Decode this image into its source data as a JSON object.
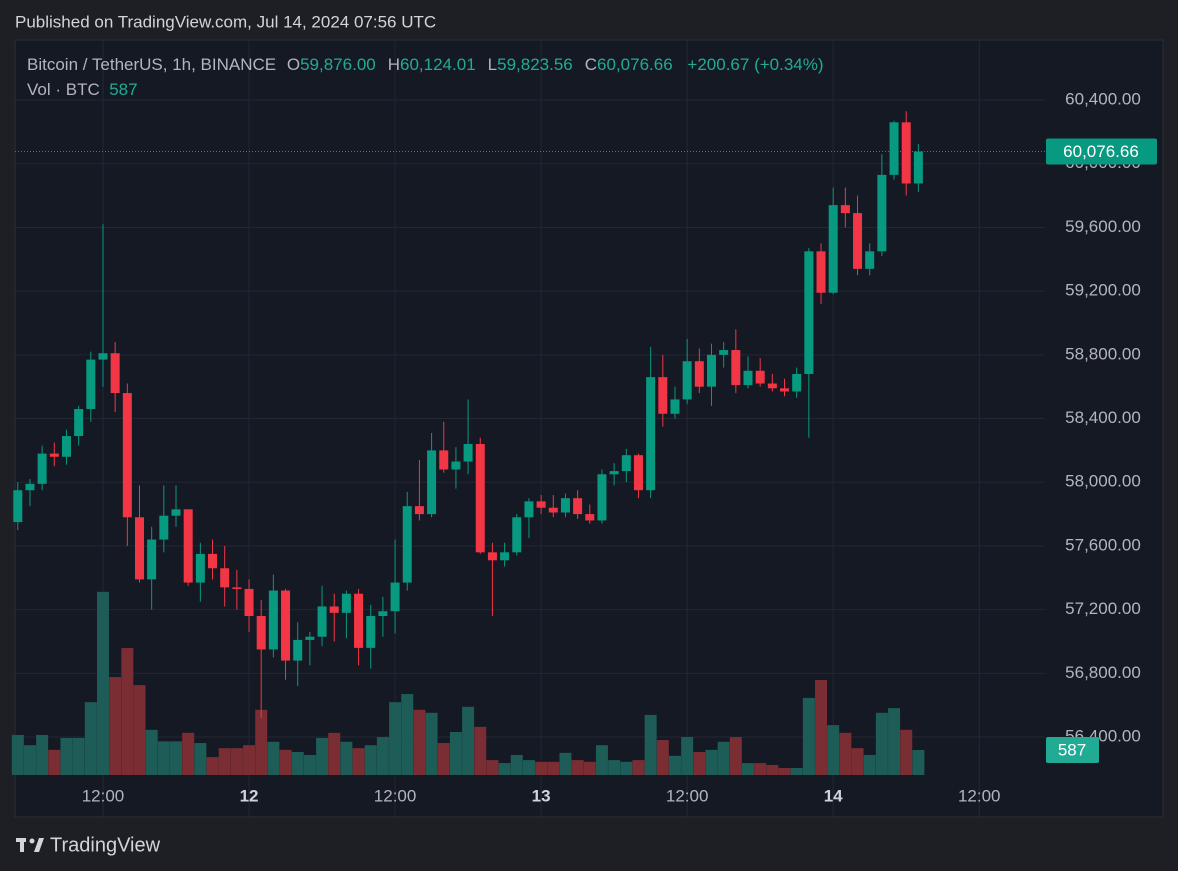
{
  "published": "Published on TradingView.com, Jul 14, 2024 07:56 UTC",
  "header": {
    "symbol": "Bitcoin / TetherUS, 1h, BINANCE",
    "ohlc": [
      {
        "key": "O",
        "value": "59,876.00"
      },
      {
        "key": "H",
        "value": "60,124.01"
      },
      {
        "key": "L",
        "value": "59,823.56"
      },
      {
        "key": "C",
        "value": "60,076.66"
      }
    ],
    "change": "+200.67 (+0.34%)",
    "volume_label": "Vol · BTC"
  },
  "brand": "TradingView",
  "chart_data": {
    "type": "candlestick",
    "x": [
      5,
      6,
      7,
      8,
      9,
      10,
      11,
      12,
      13,
      14,
      15,
      16,
      17,
      18,
      19,
      20,
      21,
      22,
      23,
      24,
      25,
      26,
      27,
      28,
      29,
      30,
      31,
      32,
      33,
      34,
      35,
      36,
      37,
      38,
      39,
      40,
      41,
      42,
      43,
      44,
      45,
      46,
      47,
      48,
      49,
      50,
      51,
      52,
      53,
      54,
      55,
      56,
      57,
      58,
      59,
      60,
      61,
      62,
      63,
      64,
      65,
      66,
      67,
      68,
      69,
      70,
      71,
      72,
      73,
      74,
      75,
      76,
      77,
      78,
      79
    ],
    "open": [
      57750,
      57950,
      57990,
      58180,
      58160,
      58290,
      58460,
      58770,
      58810,
      58560,
      57780,
      57390,
      57640,
      57790,
      57830,
      57370,
      57550,
      57460,
      57340,
      57330,
      57160,
      56950,
      57320,
      56880,
      57010,
      57030,
      57220,
      57180,
      57300,
      56960,
      57160,
      57190,
      57370,
      57850,
      57800,
      58200,
      58080,
      58130,
      58240,
      57560,
      57510,
      57560,
      57780,
      57880,
      57840,
      57810,
      57900,
      57800,
      57760,
      58050,
      58070,
      58170,
      57950,
      58660,
      58430,
      58520,
      58760,
      58600,
      58800,
      58830,
      58610,
      58700,
      58620,
      58590,
      58570,
      58680,
      59450,
      59190,
      59740,
      59690,
      59340,
      59450,
      59930,
      60260,
      59876
    ],
    "high": [
      58000,
      58020,
      58230,
      58250,
      58330,
      58480,
      58820,
      59620,
      58880,
      58620,
      57980,
      57720,
      57980,
      57980,
      57830,
      57620,
      57640,
      57600,
      57450,
      57390,
      57260,
      57420,
      57330,
      57120,
      57060,
      57350,
      57300,
      57320,
      57330,
      57230,
      57280,
      57640,
      57940,
      58140,
      58310,
      58380,
      58220,
      58520,
      58280,
      57620,
      57620,
      57800,
      57900,
      57920,
      57920,
      57930,
      57950,
      57860,
      58080,
      58120,
      58210,
      58180,
      58850,
      58800,
      58600,
      58900,
      58840,
      58870,
      58880,
      58960,
      58790,
      58780,
      58680,
      58650,
      58720,
      59470,
      59500,
      59850,
      59850,
      59800,
      59500,
      60060,
      60270,
      60330,
      60124.01
    ],
    "low": [
      57700,
      57850,
      57950,
      58100,
      58110,
      58230,
      58380,
      58600,
      58440,
      57600,
      57370,
      57200,
      57560,
      57720,
      57350,
      57250,
      57390,
      57220,
      57200,
      57060,
      56520,
      56900,
      56760,
      56720,
      56850,
      56970,
      57000,
      57020,
      56850,
      56830,
      57030,
      57050,
      57320,
      57760,
      57780,
      58060,
      57960,
      58050,
      57550,
      57160,
      57470,
      57540,
      57650,
      57800,
      57780,
      57780,
      57770,
      57740,
      57740,
      57980,
      58000,
      57900,
      57900,
      58350,
      58400,
      58490,
      58560,
      58480,
      58720,
      58560,
      58590,
      58600,
      58570,
      58540,
      58530,
      58280,
      59120,
      59180,
      59600,
      59300,
      59300,
      59420,
      59900,
      59800,
      59823.56
    ],
    "close": [
      57950,
      57990,
      58180,
      58160,
      58290,
      58460,
      58770,
      58810,
      58560,
      57780,
      57390,
      57640,
      57790,
      57830,
      57370,
      57550,
      57460,
      57340,
      57330,
      57160,
      56950,
      57320,
      56880,
      57010,
      57030,
      57220,
      57180,
      57300,
      56960,
      57160,
      57190,
      57370,
      57850,
      57800,
      58200,
      58080,
      58130,
      58240,
      57560,
      57510,
      57560,
      57780,
      57880,
      57840,
      57810,
      57900,
      57800,
      57760,
      58050,
      58070,
      58170,
      57950,
      58660,
      58430,
      58520,
      58760,
      58600,
      58800,
      58830,
      58610,
      58700,
      58620,
      58590,
      58570,
      58680,
      59450,
      59190,
      59740,
      59690,
      59340,
      59450,
      59930,
      60260,
      59876,
      60076.66
    ],
    "volume": [
      940,
      700,
      940,
      590,
      870,
      870,
      1710,
      4300,
      2300,
      2980,
      2110,
      1060,
      790,
      790,
      990,
      750,
      420,
      630,
      630,
      700,
      1530,
      780,
      590,
      540,
      470,
      870,
      990,
      780,
      630,
      700,
      890,
      1710,
      1900,
      1530,
      1460,
      750,
      1010,
      1600,
      1130,
      350,
      280,
      470,
      350,
      310,
      310,
      520,
      350,
      310,
      700,
      350,
      310,
      350,
      1410,
      820,
      450,
      890,
      540,
      590,
      780,
      890,
      280,
      280,
      235,
      165,
      165,
      1810,
      2230,
      1170,
      990,
      630,
      470,
      1460,
      1570,
      1060,
      587
    ],
    "up_color": "#089981",
    "down_color": "#f23645",
    "up_volume_color": "#1d5c57",
    "down_volume_color": "#7a2d33",
    "xlim": [
      4.77,
      99.1
    ],
    "xticks": [
      {
        "value": 12,
        "label": "12:00"
      },
      {
        "value": 24,
        "label": "12"
      },
      {
        "value": 36,
        "label": "12:00"
      },
      {
        "value": 48,
        "label": "13"
      },
      {
        "value": 60,
        "label": "12:00"
      },
      {
        "value": 72,
        "label": "14"
      },
      {
        "value": 84,
        "label": "12:00"
      }
    ],
    "ylim": [
      55898,
      60777
    ],
    "yticks": [
      {
        "value": 56400,
        "label": "56,400.00"
      },
      {
        "value": 56800,
        "label": "56,800.00"
      },
      {
        "value": 57200,
        "label": "57,200.00"
      },
      {
        "value": 57600,
        "label": "57,600.00"
      },
      {
        "value": 58000,
        "label": "58,000.00"
      },
      {
        "value": 58400,
        "label": "58,400.00"
      },
      {
        "value": 58800,
        "label": "58,800.00"
      },
      {
        "value": 59200,
        "label": "59,200.00"
      },
      {
        "value": 59600,
        "label": "59,600.00"
      },
      {
        "value": 60000,
        "label": "60,000.00"
      },
      {
        "value": 60400,
        "label": "60,400.00"
      }
    ],
    "volume_ylim": [
      0,
      17254
    ],
    "last_price": {
      "value": 60076.66,
      "label": "60,076.66"
    },
    "grid": true
  }
}
